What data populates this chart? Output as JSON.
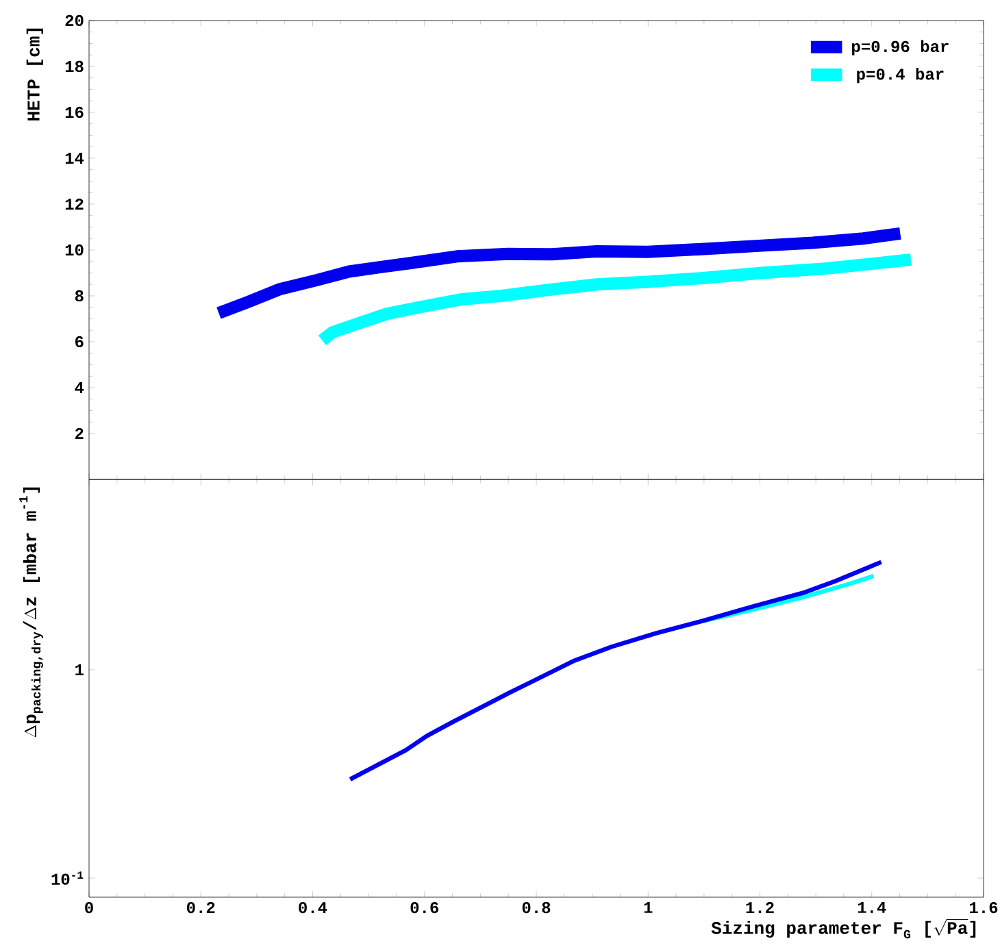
{
  "chart_data": [
    {
      "type": "line",
      "ylabel": "HETP [cm]",
      "xlim": [
        0,
        1.6
      ],
      "xticks": [
        0,
        0.2,
        0.4,
        0.6,
        0.8,
        1,
        1.2,
        1.4,
        1.6
      ],
      "ylim": [
        0,
        20
      ],
      "yticks": [
        2,
        4,
        6,
        8,
        10,
        12,
        14,
        16,
        18,
        20
      ],
      "tick_labels": "y",
      "legend": "top right",
      "marker": "none",
      "line_style": "solid",
      "series": [
        {
          "name": "p=0.96 bar",
          "color": "#0000ee",
          "x": [
            0.232,
            0.283,
            0.34,
            0.408,
            0.465,
            0.52,
            0.578,
            0.658,
            0.749,
            0.828,
            0.908,
            0.999,
            1.09,
            1.203,
            1.294,
            1.385,
            1.451
          ],
          "values": [
            7.25,
            7.72,
            8.28,
            8.69,
            9.06,
            9.25,
            9.44,
            9.72,
            9.83,
            9.81,
            9.94,
            9.92,
            10.03,
            10.19,
            10.31,
            10.5,
            10.72
          ]
        },
        {
          "name": "p=0.4 bar",
          "color": "#00ffff",
          "x": [
            0.417,
            0.436,
            0.476,
            0.533,
            0.59,
            0.669,
            0.738,
            0.828,
            0.908,
            0.999,
            1.101,
            1.203,
            1.317,
            1.397,
            1.47
          ],
          "values": [
            6.06,
            6.42,
            6.75,
            7.22,
            7.5,
            7.86,
            8.0,
            8.28,
            8.5,
            8.61,
            8.78,
            9.0,
            9.19,
            9.39,
            9.58
          ]
        }
      ]
    },
    {
      "type": "line",
      "xlabel": "\\text{Sizing parameter F}_{\\text{G}}\\text{ [}\\sqrt{\\text{Pa}}\\text{]}",
      "ylabel": "\\Delta\\text{p}_{\\text{packing,dry}}\\text{/}\\Delta\\text{z [mbar m}^{\\text{-1}}\\text{]}",
      "xlim": [
        0,
        1.6
      ],
      "xticks": [
        0,
        0.2,
        0.4,
        0.6,
        0.8,
        1,
        1.2,
        1.4,
        1.6
      ],
      "ylim": [
        0.081,
        8.2
      ],
      "yticks": [
        {
          "value": 0.1,
          "label": "10$^{-1}$"
        },
        1
      ],
      "log": true,
      "marker": "none",
      "line_style": "solid",
      "series": [
        {
          "color": "#00ffff",
          "x": [
            1.095,
            1.186,
            1.277,
            1.357,
            1.403
          ],
          "values": [
            1.71,
            1.94,
            2.23,
            2.57,
            2.82
          ]
        },
        {
          "color": "#0000ee",
          "x": [
            0.467,
            0.567,
            0.604,
            0.65,
            0.752,
            0.866,
            0.935,
            1.015,
            1.095,
            1.186,
            1.277,
            1.334,
            1.417
          ],
          "values": [
            0.298,
            0.412,
            0.481,
            0.561,
            0.776,
            1.1,
            1.29,
            1.5,
            1.71,
            2.01,
            2.34,
            2.66,
            3.29
          ]
        }
      ]
    }
  ]
}
